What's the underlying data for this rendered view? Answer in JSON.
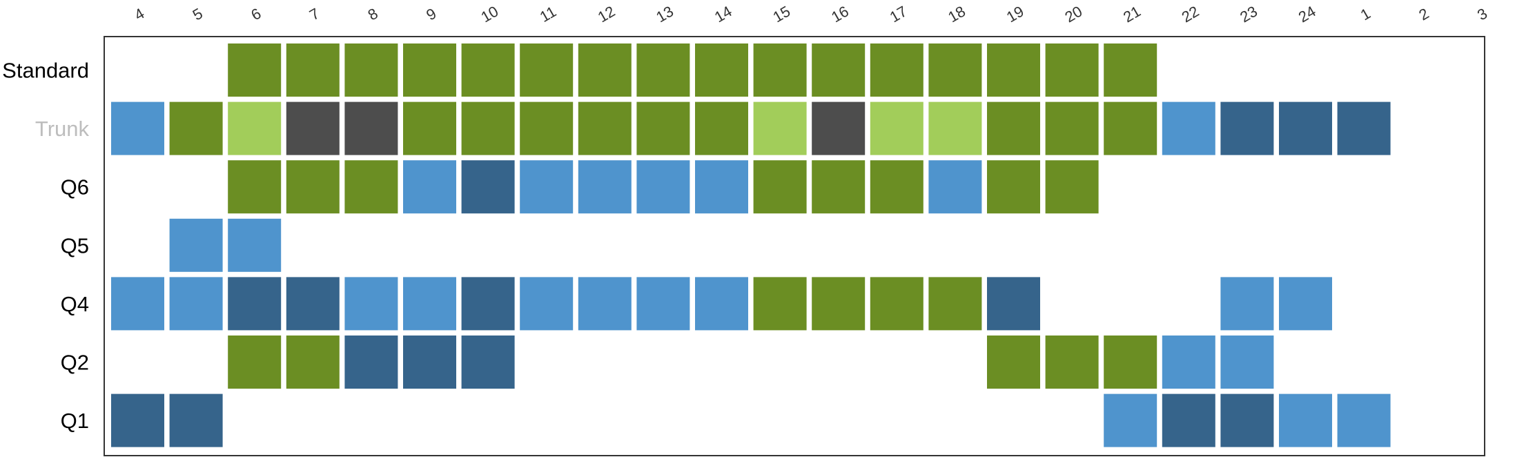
{
  "chart_data": {
    "type": "heatmap",
    "title": "",
    "xlabel": "",
    "ylabel": "",
    "x_categories": [
      "4",
      "5",
      "6",
      "7",
      "8",
      "9",
      "10",
      "11",
      "12",
      "13",
      "14",
      "15",
      "16",
      "17",
      "18",
      "19",
      "20",
      "21",
      "22",
      "23",
      "24",
      "1",
      "2",
      "3"
    ],
    "rows": [
      {
        "label": "Standard",
        "label_color": "#000000",
        "cells": [
          "",
          "",
          "G",
          "G",
          "G",
          "G",
          "G",
          "G",
          "G",
          "G",
          "G",
          "G",
          "G",
          "G",
          "G",
          "G",
          "G",
          "G",
          "",
          "",
          "",
          "",
          "",
          ""
        ]
      },
      {
        "label": "Trunk",
        "label_color": "#bdbdbd",
        "cells": [
          "B",
          "G",
          "L",
          "K",
          "K",
          "G",
          "G",
          "G",
          "G",
          "G",
          "G",
          "L",
          "K",
          "L",
          "L",
          "G",
          "G",
          "G",
          "B",
          "D",
          "D",
          "D",
          "",
          ""
        ]
      },
      {
        "label": "Q6",
        "label_color": "#000000",
        "cells": [
          "",
          "",
          "G",
          "G",
          "G",
          "B",
          "D",
          "B",
          "B",
          "B",
          "B",
          "G",
          "G",
          "G",
          "B",
          "G",
          "G",
          "",
          "",
          "",
          "",
          "",
          "",
          ""
        ]
      },
      {
        "label": "Q5",
        "label_color": "#000000",
        "cells": [
          "",
          "B",
          "B",
          "",
          "",
          "",
          "",
          "",
          "",
          "",
          "",
          "",
          "",
          "",
          "",
          "",
          "",
          "",
          "",
          "",
          "",
          "",
          "",
          ""
        ]
      },
      {
        "label": "Q4",
        "label_color": "#000000",
        "cells": [
          "B",
          "B",
          "D",
          "D",
          "B",
          "B",
          "D",
          "B",
          "B",
          "B",
          "B",
          "G",
          "G",
          "G",
          "G",
          "D",
          "",
          "",
          "",
          "B",
          "B",
          "",
          "",
          ""
        ]
      },
      {
        "label": "Q2",
        "label_color": "#000000",
        "cells": [
          "",
          "",
          "G",
          "G",
          "D",
          "D",
          "D",
          "",
          "",
          "",
          "",
          "",
          "",
          "",
          "",
          "G",
          "G",
          "G",
          "B",
          "B",
          "",
          "",
          "",
          ""
        ]
      },
      {
        "label": "Q1",
        "label_color": "#000000",
        "cells": [
          "D",
          "D",
          "",
          "",
          "",
          "",
          "",
          "",
          "",
          "",
          "",
          "",
          "",
          "",
          "",
          "",
          "",
          "B",
          "D",
          "D",
          "B",
          "B",
          "",
          ""
        ]
      }
    ],
    "colors": {
      "G": "#6b8e23",
      "L": "#a2cd5a",
      "K": "#4d4d4d",
      "B": "#4f94cd",
      "D": "#36648b"
    },
    "grid": false,
    "legend": "none"
  }
}
